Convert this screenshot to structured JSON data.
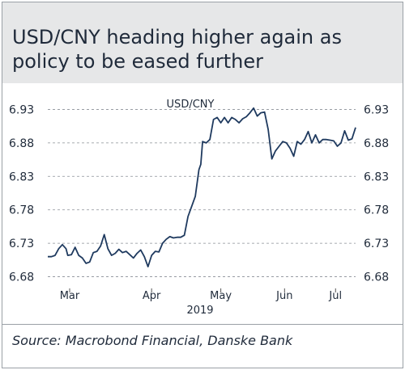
{
  "title": "USD/CNY heading higher again as policy to be eased further",
  "source": "Source: Macrobond Financial, Danske Bank",
  "chart_data": {
    "type": "line",
    "series": [
      {
        "name": "USD/CNY",
        "color": "#1f3a5f",
        "points": [
          [
            0,
            6.71
          ],
          [
            2,
            6.71
          ],
          [
            4,
            6.712
          ],
          [
            6,
            6.722
          ],
          [
            8,
            6.728
          ],
          [
            10,
            6.722
          ],
          [
            11,
            6.712
          ],
          [
            13,
            6.713
          ],
          [
            15,
            6.724
          ],
          [
            17,
            6.712
          ],
          [
            19,
            6.708
          ],
          [
            21,
            6.7
          ],
          [
            23,
            6.702
          ],
          [
            25,
            6.716
          ],
          [
            27,
            6.718
          ],
          [
            29,
            6.726
          ],
          [
            31,
            6.743
          ],
          [
            33,
            6.722
          ],
          [
            35,
            6.712
          ],
          [
            37,
            6.715
          ],
          [
            39,
            6.721
          ],
          [
            41,
            6.716
          ],
          [
            43,
            6.718
          ],
          [
            45,
            6.713
          ],
          [
            47,
            6.708
          ],
          [
            49,
            6.715
          ],
          [
            51,
            6.72
          ],
          [
            53,
            6.71
          ],
          [
            55,
            6.695
          ],
          [
            57,
            6.712
          ],
          [
            59,
            6.718
          ],
          [
            61,
            6.717
          ],
          [
            63,
            6.73
          ],
          [
            65,
            6.736
          ],
          [
            67,
            6.74
          ],
          [
            69,
            6.738
          ],
          [
            71,
            6.739
          ],
          [
            73,
            6.739
          ],
          [
            75,
            6.742
          ],
          [
            77,
            6.77
          ],
          [
            79,
            6.785
          ],
          [
            81,
            6.8
          ],
          [
            83,
            6.84
          ],
          [
            84,
            6.848
          ],
          [
            85,
            6.882
          ],
          [
            87,
            6.88
          ],
          [
            89,
            6.885
          ],
          [
            91,
            6.915
          ],
          [
            93,
            6.918
          ],
          [
            95,
            6.91
          ],
          [
            97,
            6.918
          ],
          [
            99,
            6.91
          ],
          [
            101,
            6.918
          ],
          [
            103,
            6.915
          ],
          [
            105,
            6.91
          ],
          [
            107,
            6.916
          ],
          [
            109,
            6.919
          ],
          [
            111,
            6.925
          ],
          [
            113,
            6.932
          ],
          [
            115,
            6.92
          ],
          [
            117,
            6.925
          ],
          [
            119,
            6.926
          ],
          [
            121,
            6.9
          ],
          [
            123,
            6.856
          ],
          [
            125,
            6.868
          ],
          [
            127,
            6.875
          ],
          [
            129,
            6.882
          ],
          [
            131,
            6.88
          ],
          [
            133,
            6.872
          ],
          [
            135,
            6.86
          ],
          [
            137,
            6.882
          ],
          [
            139,
            6.878
          ],
          [
            141,
            6.885
          ],
          [
            143,
            6.897
          ],
          [
            145,
            6.88
          ],
          [
            147,
            6.892
          ],
          [
            149,
            6.88
          ],
          [
            151,
            6.885
          ],
          [
            153,
            6.885
          ],
          [
            155,
            6.884
          ],
          [
            157,
            6.883
          ],
          [
            159,
            6.875
          ],
          [
            161,
            6.88
          ],
          [
            163,
            6.898
          ],
          [
            165,
            6.884
          ],
          [
            167,
            6.886
          ],
          [
            169,
            6.903
          ]
        ]
      }
    ],
    "x_domain": [
      0,
      169
    ],
    "x_ticks": [
      {
        "label": "Mar",
        "x": 12
      },
      {
        "label": "Apr",
        "x": 57
      },
      {
        "label": "May",
        "x": 95
      },
      {
        "label": "Jun",
        "x": 130
      },
      {
        "label": "Jul",
        "x": 158
      }
    ],
    "x_sublabel": "2019",
    "ylim": [
      6.665,
      6.945
    ],
    "y_ticks": [
      "6.93",
      "6.88",
      "6.83",
      "6.78",
      "6.73",
      "6.68"
    ],
    "y_tick_values": [
      6.93,
      6.88,
      6.83,
      6.78,
      6.73,
      6.68
    ],
    "grid": "horizontal-dashed",
    "axes": "left-and-right"
  }
}
